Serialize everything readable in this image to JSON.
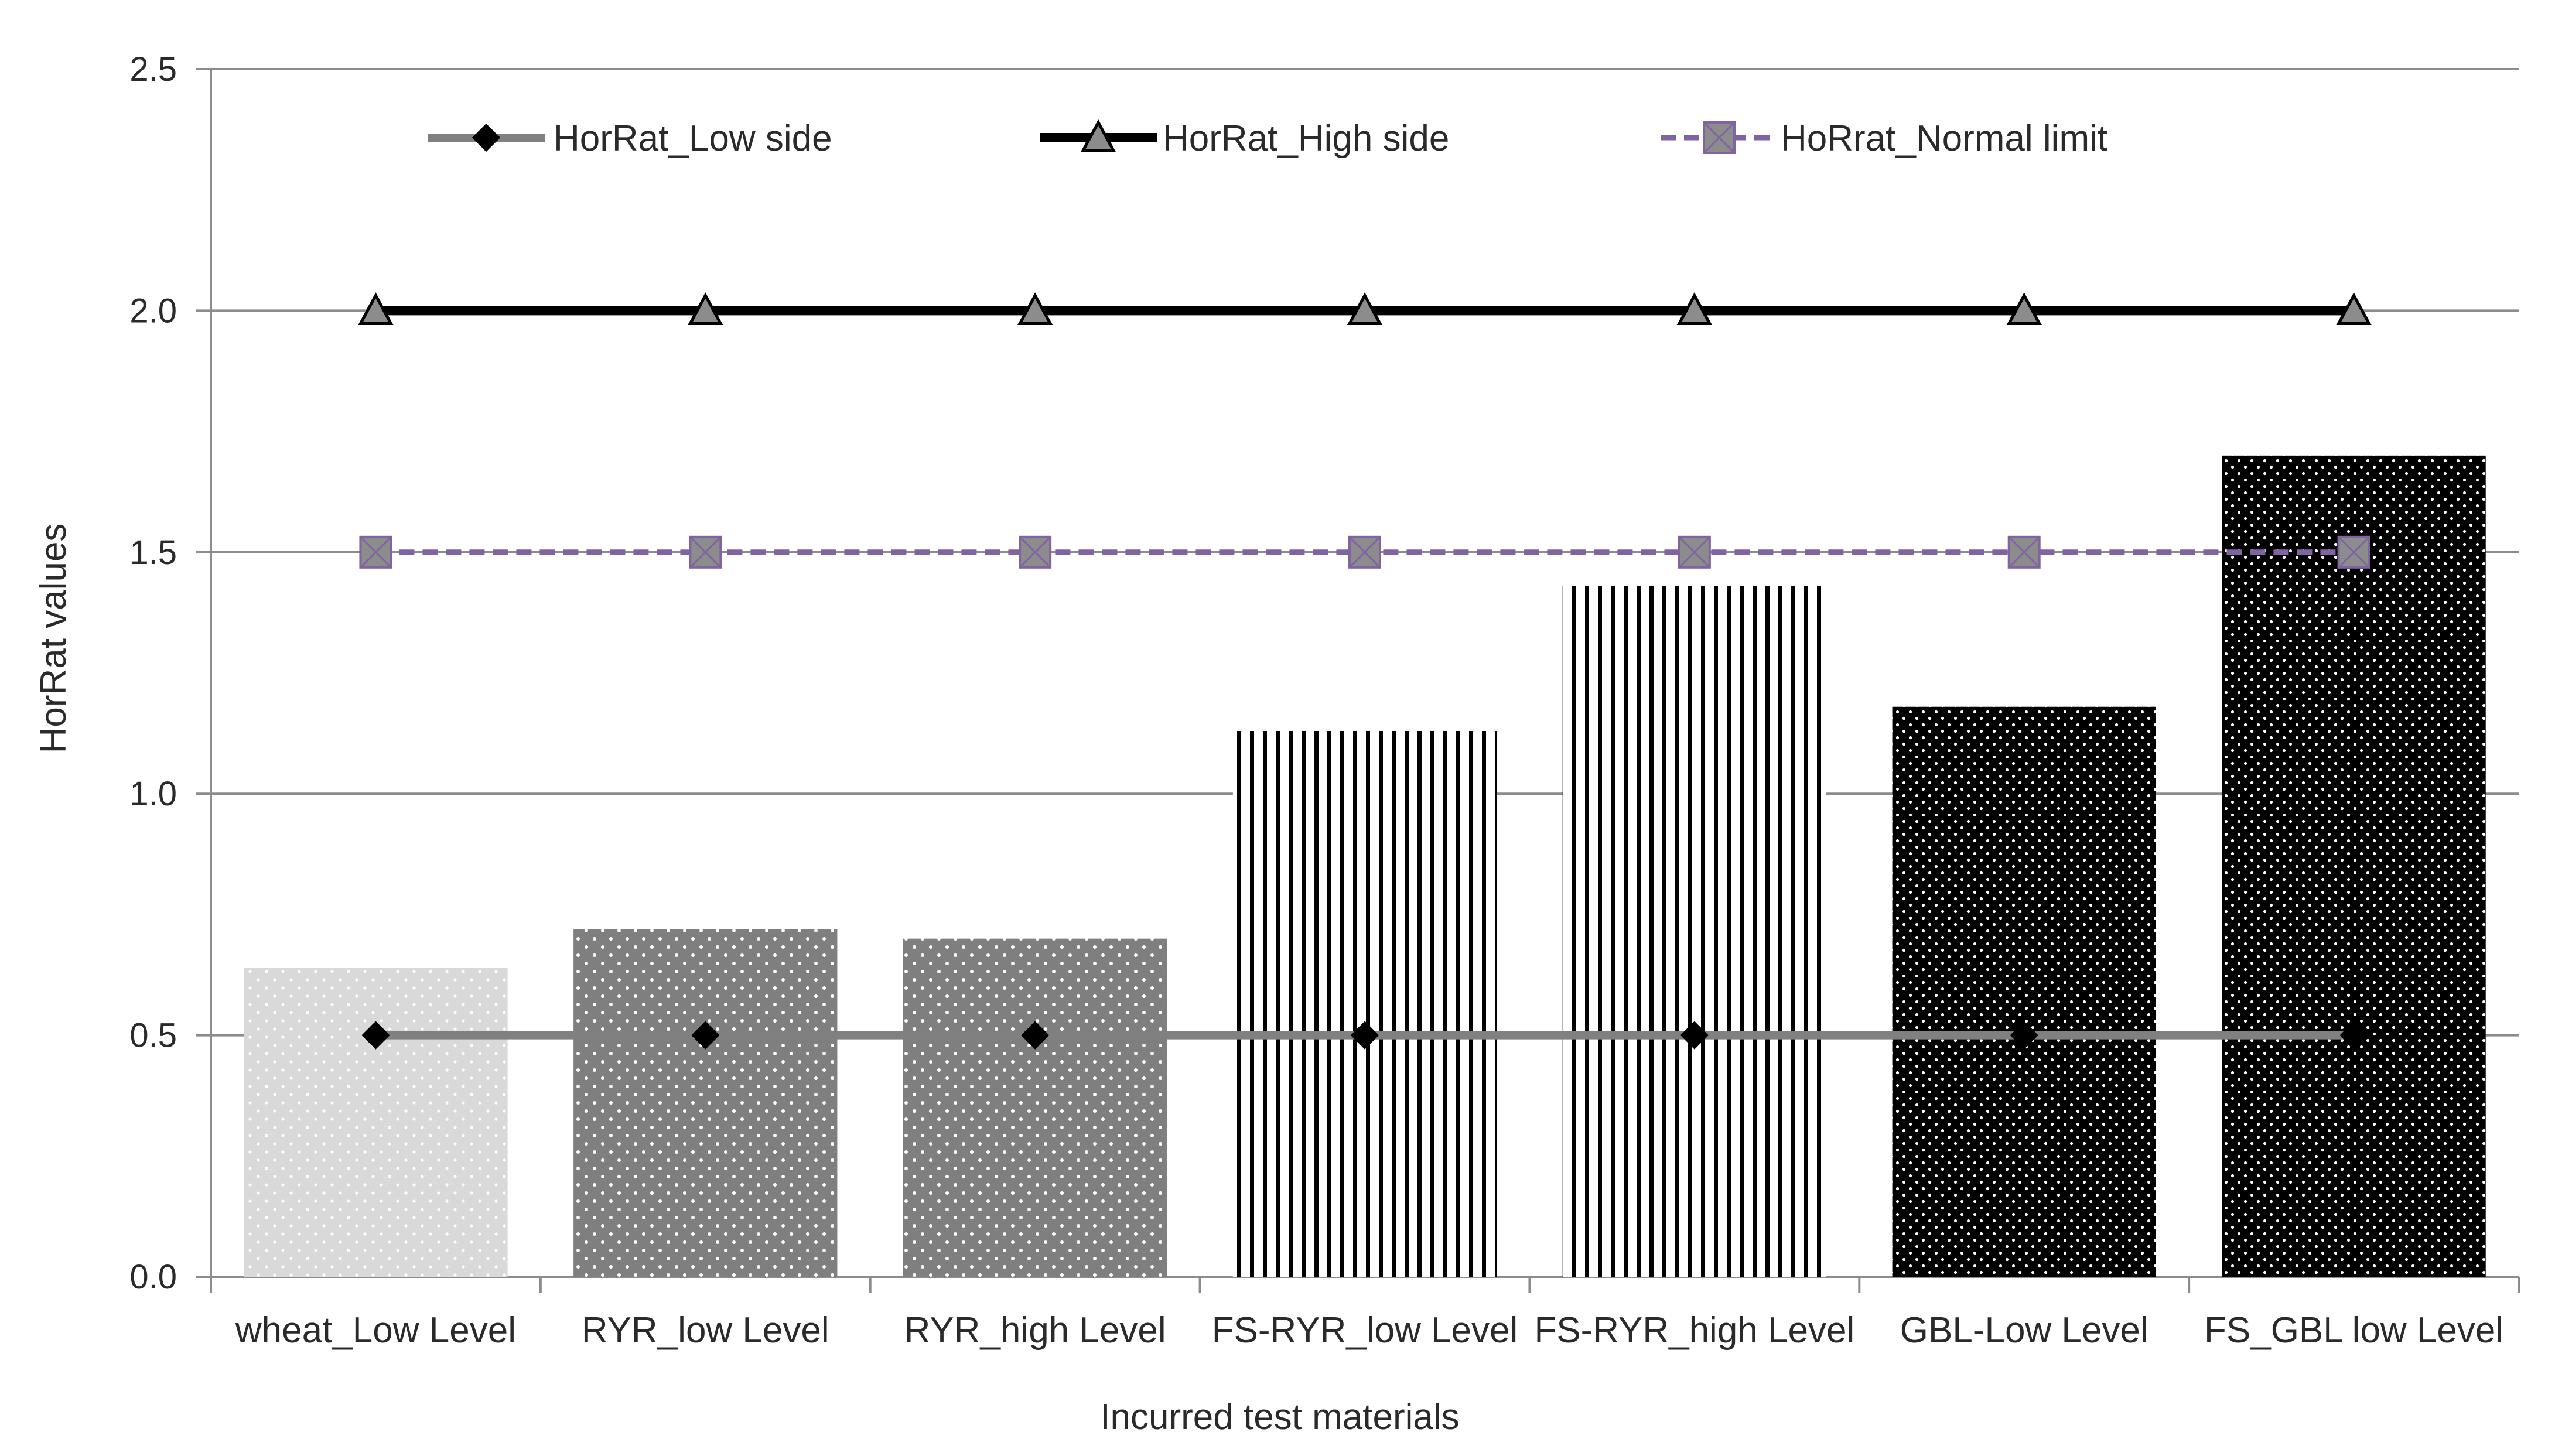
{
  "chart_data": {
    "type": "bar",
    "title": "",
    "xlabel": "Incurred test materials",
    "ylabel": "HorRat values",
    "ylim": [
      0,
      2.5
    ],
    "yticks": [
      "0.0",
      "0.5",
      "1.0",
      "1.5",
      "2.0",
      "2.5"
    ],
    "ytick_values": [
      0,
      0.5,
      1.0,
      1.5,
      2.0,
      2.5
    ],
    "grid": true,
    "legend_position": "top",
    "categories": [
      "wheat_Low Level",
      "RYR_low Level",
      "RYR_high Level",
      "FS-RYR_low Level",
      "FS-RYR_high Level",
      "GBL-Low Level",
      "FS_GBL low Level"
    ],
    "bars": {
      "values": [
        0.64,
        0.72,
        0.7,
        1.13,
        1.43,
        1.18,
        1.7
      ],
      "patterns": [
        "light-dots",
        "gray-dots",
        "gray-dots",
        "vertical-lines",
        "vertical-lines",
        "dark-dots",
        "dark-dots"
      ]
    },
    "series": [
      {
        "name": "HorRat_Low side",
        "values": [
          0.5,
          0.5,
          0.5,
          0.5,
          0.5,
          0.5,
          0.5
        ],
        "color": "#808080",
        "marker": "diamond"
      },
      {
        "name": "HorRat_High side",
        "values": [
          2.0,
          2.0,
          2.0,
          2.0,
          2.0,
          2.0,
          2.0
        ],
        "color": "#000000",
        "marker": "triangle"
      },
      {
        "name": "HoRrat_Normal limit",
        "values": [
          1.5,
          1.5,
          1.5,
          1.5,
          1.5,
          1.5,
          1.5
        ],
        "color": "#8064a2",
        "marker": "square"
      }
    ]
  }
}
